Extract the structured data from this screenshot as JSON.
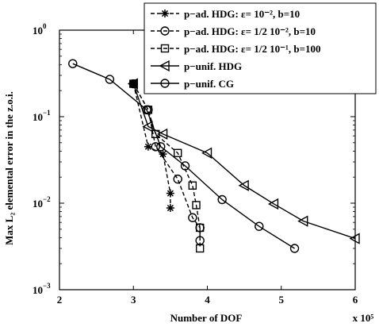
{
  "chart_data": {
    "type": "line",
    "xlabel": "Number of DOF",
    "ylabel": "Max L₂ elemental error in the z.o.i.",
    "x_multiplier": "x 10⁵",
    "xlim": [
      200000,
      600000
    ],
    "ylim": [
      0.001,
      1
    ],
    "y_scale": "log",
    "grid": false,
    "legend_position": "top-right",
    "x_ticks": [
      {
        "value": 200000,
        "label": "2"
      },
      {
        "value": 300000,
        "label": "3"
      },
      {
        "value": 400000,
        "label": "4"
      },
      {
        "value": 500000,
        "label": "5"
      },
      {
        "value": 600000,
        "label": "6"
      }
    ],
    "y_ticks": [
      {
        "value": 1,
        "base": "10",
        "exp": "0"
      },
      {
        "value": 0.1,
        "base": "10",
        "exp": "−1"
      },
      {
        "value": 0.01,
        "base": "10",
        "exp": "−2"
      },
      {
        "value": 0.001,
        "base": "10",
        "exp": "−3"
      }
    ],
    "series": [
      {
        "name": "p−ad. HDG: ε= 10⁻², b=10",
        "marker": "asterisk",
        "dash": "dashed",
        "points": [
          [
            300000,
            0.24
          ],
          [
            320000,
            0.045
          ],
          [
            340000,
            0.037
          ],
          [
            350000,
            0.013
          ],
          [
            350000,
            0.0088
          ]
        ]
      },
      {
        "name": "p−ad. HDG: ε= 1/2 10⁻², b=10",
        "marker": "circle",
        "dash": "dashed",
        "points": [
          [
            300000,
            0.24
          ],
          [
            320000,
            0.12
          ],
          [
            330000,
            0.045
          ],
          [
            360000,
            0.019
          ],
          [
            380000,
            0.0068
          ],
          [
            390000,
            0.0052
          ],
          [
            390000,
            0.0037
          ]
        ]
      },
      {
        "name": "p−ad. HDG: ε= 1/2 10⁻¹, b=100",
        "marker": "square",
        "dash": "dashed",
        "points": [
          [
            300000,
            0.24
          ],
          [
            320000,
            0.12
          ],
          [
            330000,
            0.063
          ],
          [
            360000,
            0.038
          ],
          [
            380000,
            0.016
          ],
          [
            385000,
            0.0095
          ],
          [
            390000,
            0.0052
          ],
          [
            390000,
            0.003
          ]
        ]
      },
      {
        "name": "p−unif. HDG",
        "marker": "triangle-left",
        "dash": "solid",
        "points": [
          [
            300000,
            0.24
          ],
          [
            320000,
            0.077
          ],
          [
            340000,
            0.063
          ],
          [
            400000,
            0.038
          ],
          [
            450000,
            0.016
          ],
          [
            490000,
            0.0098
          ],
          [
            530000,
            0.0062
          ],
          [
            600000,
            0.0039
          ]
        ]
      },
      {
        "name": "p−unif. CG",
        "marker": "circle",
        "dash": "solid",
        "points": [
          [
            218000,
            0.41
          ],
          [
            268000,
            0.27
          ],
          [
            318000,
            0.12
          ],
          [
            337000,
            0.045
          ],
          [
            370000,
            0.027
          ],
          [
            420000,
            0.011
          ],
          [
            470000,
            0.0054
          ],
          [
            518000,
            0.003
          ]
        ]
      }
    ]
  }
}
